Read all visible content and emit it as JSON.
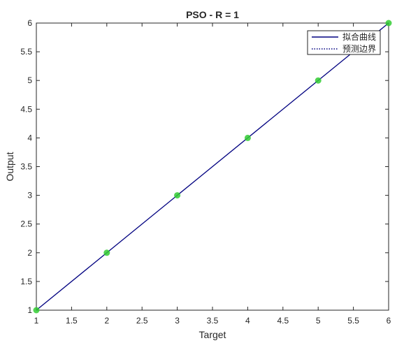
{
  "chart_data": {
    "type": "scatter",
    "title": "PSO - R =  1",
    "xlabel": "Target",
    "ylabel": "Output",
    "xlim": [
      1,
      6
    ],
    "ylim": [
      1,
      6
    ],
    "xticks": [
      1,
      1.5,
      2,
      2.5,
      3,
      3.5,
      4,
      4.5,
      5,
      5.5,
      6
    ],
    "yticks": [
      1,
      1.5,
      2,
      2.5,
      3,
      3.5,
      4,
      4.5,
      5,
      5.5,
      6
    ],
    "grid": false,
    "legend_position": "top-right",
    "points": {
      "x": [
        1,
        2,
        3,
        4,
        5,
        6
      ],
      "y": [
        1,
        2,
        3,
        4,
        5,
        6
      ],
      "color": "#33cc33"
    },
    "series": [
      {
        "name": "拟合曲线",
        "style": "solid",
        "color": "#000080",
        "x": [
          1,
          6
        ],
        "y": [
          1,
          6
        ]
      },
      {
        "name": "预测边界",
        "style": "dotted",
        "color": "#000080",
        "x": [],
        "y": []
      }
    ]
  }
}
